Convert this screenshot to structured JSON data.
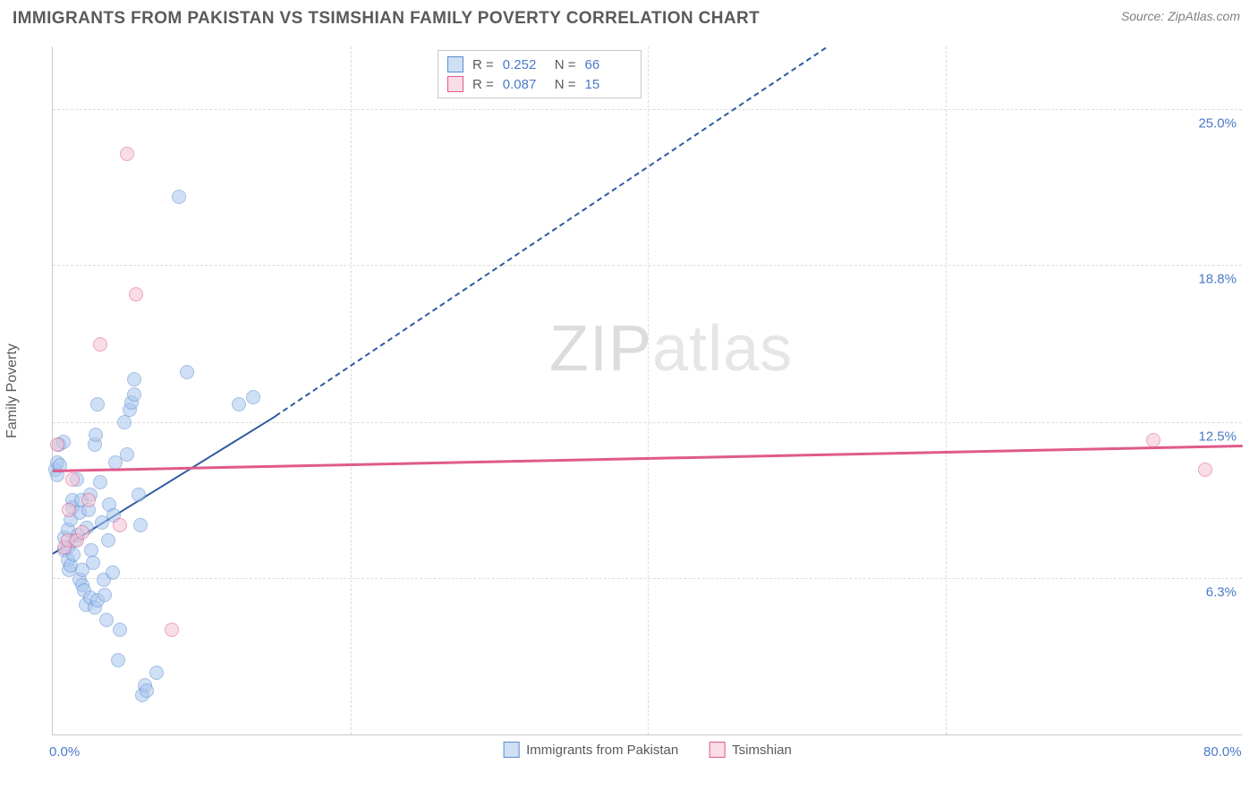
{
  "header": {
    "title": "IMMIGRANTS FROM PAKISTAN VS TSIMSHIAN FAMILY POVERTY CORRELATION CHART",
    "source_prefix": "Source: ",
    "source": "ZipAtlas.com"
  },
  "watermark": {
    "zip": "ZIP",
    "atlas": "atlas"
  },
  "chart": {
    "type": "scatter",
    "ylabel": "Family Poverty",
    "xlim": [
      0,
      80
    ],
    "ylim": [
      0,
      27.5
    ],
    "x_ticks": [
      {
        "v": 0,
        "label": "0.0%"
      },
      {
        "v": 80,
        "label": "80.0%"
      }
    ],
    "x_grid": [
      20,
      40,
      60
    ],
    "y_ticks": [
      {
        "v": 6.3,
        "label": "6.3%"
      },
      {
        "v": 12.5,
        "label": "12.5%"
      },
      {
        "v": 18.8,
        "label": "18.8%"
      },
      {
        "v": 25.0,
        "label": "25.0%"
      }
    ],
    "background_color": "#ffffff",
    "grid_color": "#dcdcdc",
    "axis_color": "#c8c8c8",
    "tick_label_color": "#4a7ac7",
    "tick_fontsize": 15,
    "ylabel_fontsize": 16,
    "marker_radius": 8,
    "marker_opacity": 0.55,
    "series": [
      {
        "name": "Immigrants from Pakistan",
        "fill": "#a8c6ed",
        "stroke": "#5a8bd0",
        "swatch_fill": "#cfe0f5",
        "swatch_stroke": "#5a8bd0",
        "R": "0.252",
        "N": "66",
        "trend": {
          "x1": 0,
          "y1": 7.3,
          "x2": 15,
          "y2": 12.8,
          "solid_end_x": 15,
          "dash_end_x": 52,
          "dash_end_y": 27.5,
          "color": "#2e5aa0",
          "width": 2
        },
        "points": [
          {
            "x": 0.2,
            "y": 10.6
          },
          {
            "x": 0.3,
            "y": 10.4
          },
          {
            "x": 0.3,
            "y": 10.9
          },
          {
            "x": 0.5,
            "y": 10.8
          },
          {
            "x": 0.4,
            "y": 11.6
          },
          {
            "x": 0.7,
            "y": 11.7
          },
          {
            "x": 0.8,
            "y": 7.4
          },
          {
            "x": 0.8,
            "y": 7.9
          },
          {
            "x": 1.0,
            "y": 8.2
          },
          {
            "x": 1.0,
            "y": 7.0
          },
          {
            "x": 1.0,
            "y": 7.5
          },
          {
            "x": 1.1,
            "y": 6.6
          },
          {
            "x": 1.2,
            "y": 6.8
          },
          {
            "x": 1.2,
            "y": 8.6
          },
          {
            "x": 1.3,
            "y": 9.1
          },
          {
            "x": 1.3,
            "y": 9.4
          },
          {
            "x": 1.4,
            "y": 7.2
          },
          {
            "x": 1.5,
            "y": 7.8
          },
          {
            "x": 1.6,
            "y": 10.2
          },
          {
            "x": 1.7,
            "y": 8.0
          },
          {
            "x": 1.8,
            "y": 6.2
          },
          {
            "x": 1.8,
            "y": 8.9
          },
          {
            "x": 1.9,
            "y": 9.4
          },
          {
            "x": 2.0,
            "y": 6.0
          },
          {
            "x": 2.0,
            "y": 6.6
          },
          {
            "x": 2.1,
            "y": 5.8
          },
          {
            "x": 2.2,
            "y": 5.2
          },
          {
            "x": 2.3,
            "y": 8.3
          },
          {
            "x": 2.4,
            "y": 9.0
          },
          {
            "x": 2.5,
            "y": 9.6
          },
          {
            "x": 2.5,
            "y": 5.5
          },
          {
            "x": 2.6,
            "y": 7.4
          },
          {
            "x": 2.7,
            "y": 6.9
          },
          {
            "x": 2.8,
            "y": 5.1
          },
          {
            "x": 2.8,
            "y": 11.6
          },
          {
            "x": 2.9,
            "y": 12.0
          },
          {
            "x": 3.0,
            "y": 13.2
          },
          {
            "x": 3.0,
            "y": 5.4
          },
          {
            "x": 3.2,
            "y": 10.1
          },
          {
            "x": 3.3,
            "y": 8.5
          },
          {
            "x": 3.4,
            "y": 6.2
          },
          {
            "x": 3.5,
            "y": 5.6
          },
          {
            "x": 3.6,
            "y": 4.6
          },
          {
            "x": 3.7,
            "y": 7.8
          },
          {
            "x": 3.8,
            "y": 9.2
          },
          {
            "x": 4.0,
            "y": 6.5
          },
          {
            "x": 4.1,
            "y": 8.8
          },
          {
            "x": 4.2,
            "y": 10.9
          },
          {
            "x": 4.4,
            "y": 3.0
          },
          {
            "x": 4.5,
            "y": 4.2
          },
          {
            "x": 4.8,
            "y": 12.5
          },
          {
            "x": 5.0,
            "y": 11.2
          },
          {
            "x": 5.2,
            "y": 13.0
          },
          {
            "x": 5.3,
            "y": 13.3
          },
          {
            "x": 5.5,
            "y": 13.6
          },
          {
            "x": 5.5,
            "y": 14.2
          },
          {
            "x": 5.8,
            "y": 9.6
          },
          {
            "x": 5.9,
            "y": 8.4
          },
          {
            "x": 6.0,
            "y": 1.6
          },
          {
            "x": 6.2,
            "y": 2.0
          },
          {
            "x": 6.3,
            "y": 1.8
          },
          {
            "x": 7.0,
            "y": 2.5
          },
          {
            "x": 8.5,
            "y": 21.5
          },
          {
            "x": 9.0,
            "y": 14.5
          },
          {
            "x": 12.5,
            "y": 13.2
          },
          {
            "x": 13.5,
            "y": 13.5
          }
        ]
      },
      {
        "name": "Tsimshian",
        "fill": "#f4c3d4",
        "stroke": "#e05a8a",
        "swatch_fill": "#f9dde7",
        "swatch_stroke": "#e05a8a",
        "R": "0.087",
        "N": "15",
        "trend": {
          "x1": 0,
          "y1": 10.6,
          "x2": 80,
          "y2": 11.6,
          "solid_end_x": 80,
          "color": "#e05a8a",
          "width": 2.5
        },
        "points": [
          {
            "x": 0.3,
            "y": 11.6
          },
          {
            "x": 0.8,
            "y": 7.5
          },
          {
            "x": 1.0,
            "y": 7.8
          },
          {
            "x": 1.1,
            "y": 9.0
          },
          {
            "x": 1.3,
            "y": 10.2
          },
          {
            "x": 1.6,
            "y": 7.8
          },
          {
            "x": 2.0,
            "y": 8.1
          },
          {
            "x": 2.4,
            "y": 9.4
          },
          {
            "x": 3.2,
            "y": 15.6
          },
          {
            "x": 4.5,
            "y": 8.4
          },
          {
            "x": 5.0,
            "y": 23.2
          },
          {
            "x": 5.6,
            "y": 17.6
          },
          {
            "x": 8.0,
            "y": 4.2
          },
          {
            "x": 74.0,
            "y": 11.8
          },
          {
            "x": 77.5,
            "y": 10.6
          }
        ]
      }
    ],
    "stats_box": {
      "R_label": "R =",
      "N_label": "N ="
    }
  }
}
